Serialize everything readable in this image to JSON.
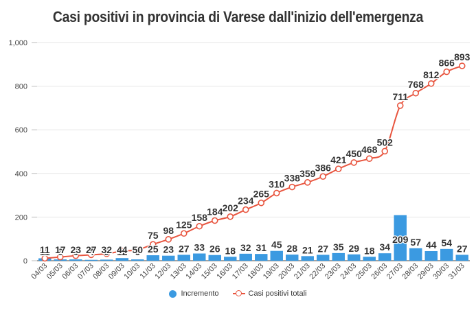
{
  "chart_data": {
    "type": "bar+line",
    "title": "Casi positivi in provincia di Varese dall'inizio dell'emergenza",
    "categories": [
      "04/03",
      "05/03",
      "06/03",
      "07/03",
      "08/03",
      "09/03",
      "10/03",
      "11/03",
      "12/03",
      "13/03",
      "14/03",
      "15/03",
      "16/03",
      "17/03",
      "18/03",
      "19/03",
      "20/03",
      "21/03",
      "22/03",
      "23/03",
      "24/03",
      "25/03",
      "26/03",
      "27/03",
      "28/03",
      "29/03",
      "30/03",
      "31/03"
    ],
    "series": [
      {
        "name": "Incremento",
        "type": "bar",
        "color": "#3b9ae1",
        "values": [
          11,
          6,
          6,
          4,
          5,
          12,
          6,
          25,
          23,
          27,
          33,
          26,
          18,
          32,
          31,
          45,
          28,
          21,
          27,
          35,
          29,
          18,
          34,
          209,
          57,
          44,
          54,
          27
        ]
      },
      {
        "name": "Casi positivi totali",
        "type": "line",
        "color": "#e8553f",
        "values": [
          11,
          17,
          23,
          27,
          32,
          44,
          50,
          75,
          98,
          125,
          158,
          184,
          202,
          234,
          265,
          310,
          338,
          359,
          386,
          421,
          450,
          468,
          502,
          711,
          768,
          812,
          866,
          893
        ]
      }
    ],
    "ylim": [
      0,
      1000
    ],
    "yticks": [
      0,
      200,
      400,
      600,
      800,
      1000
    ],
    "ytick_labels": [
      "0",
      "200",
      "400",
      "600",
      "800",
      "1,000"
    ],
    "grid": true,
    "legend": "bottom-center"
  }
}
